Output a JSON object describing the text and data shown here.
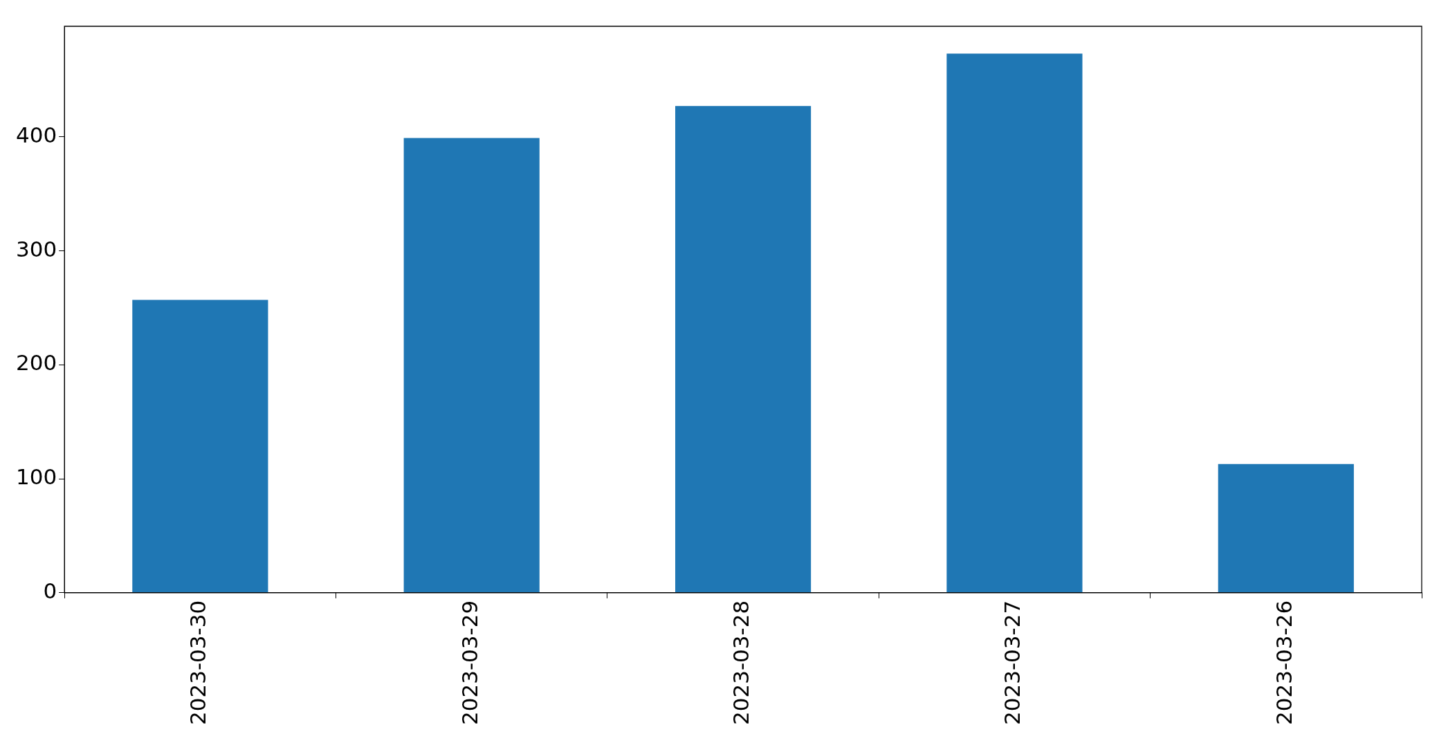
{
  "chart_data": {
    "type": "bar",
    "categories": [
      "2023-03-30",
      "2023-03-29",
      "2023-03-28",
      "2023-03-27",
      "2023-03-26"
    ],
    "values": [
      257,
      399,
      427,
      473,
      113
    ],
    "color": "#1f77b4",
    "ylim": [
      0,
      497
    ],
    "yticks": [
      0,
      100,
      200,
      300,
      400
    ],
    "grid": false,
    "legend": false
  }
}
